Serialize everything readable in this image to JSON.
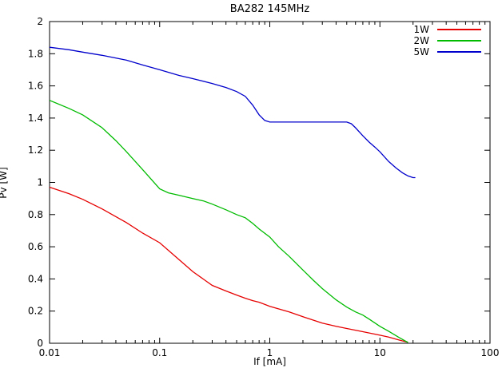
{
  "chart_data": {
    "type": "line",
    "title": "BA282 145MHz",
    "xlabel": "If [mA]",
    "ylabel": "Pv [W]",
    "x_scale": "log",
    "y_scale": "linear",
    "xlim": [
      0.01,
      100
    ],
    "ylim": [
      0,
      2
    ],
    "grid": false,
    "legend_position": "top-right-inside",
    "x_ticks": [
      {
        "value": 0.01,
        "label": "0.01"
      },
      {
        "value": 0.1,
        "label": "0.1"
      },
      {
        "value": 1,
        "label": "1"
      },
      {
        "value": 10,
        "label": "10"
      },
      {
        "value": 100,
        "label": "100"
      }
    ],
    "y_ticks": [
      {
        "value": 0,
        "label": "0"
      },
      {
        "value": 0.2,
        "label": "0.2"
      },
      {
        "value": 0.4,
        "label": "0.4"
      },
      {
        "value": 0.6,
        "label": "0.6"
      },
      {
        "value": 0.8,
        "label": "0.8"
      },
      {
        "value": 1,
        "label": "1"
      },
      {
        "value": 1.2,
        "label": "1.2"
      },
      {
        "value": 1.4,
        "label": "1.4"
      },
      {
        "value": 1.6,
        "label": "1.6"
      },
      {
        "value": 1.8,
        "label": "1.8"
      },
      {
        "value": 2,
        "label": "2"
      }
    ],
    "series": [
      {
        "name": "1W",
        "color": "#e60000",
        "points": [
          [
            0.01,
            0.97
          ],
          [
            0.015,
            0.93
          ],
          [
            0.02,
            0.895
          ],
          [
            0.03,
            0.835
          ],
          [
            0.05,
            0.75
          ],
          [
            0.07,
            0.685
          ],
          [
            0.1,
            0.625
          ],
          [
            0.15,
            0.52
          ],
          [
            0.2,
            0.445
          ],
          [
            0.3,
            0.36
          ],
          [
            0.4,
            0.325
          ],
          [
            0.5,
            0.3
          ],
          [
            0.6,
            0.28
          ],
          [
            0.7,
            0.265
          ],
          [
            0.8,
            0.255
          ],
          [
            1.0,
            0.23
          ],
          [
            1.5,
            0.195
          ],
          [
            2,
            0.165
          ],
          [
            3,
            0.125
          ],
          [
            4,
            0.105
          ],
          [
            5,
            0.092
          ],
          [
            7,
            0.072
          ],
          [
            10,
            0.05
          ],
          [
            12,
            0.038
          ],
          [
            15,
            0.02
          ],
          [
            18,
            0.006
          ]
        ]
      },
      {
        "name": "2W",
        "color": "#00bb00",
        "points": [
          [
            0.01,
            1.51
          ],
          [
            0.015,
            1.46
          ],
          [
            0.02,
            1.42
          ],
          [
            0.03,
            1.34
          ],
          [
            0.04,
            1.26
          ],
          [
            0.05,
            1.19
          ],
          [
            0.07,
            1.08
          ],
          [
            0.1,
            0.96
          ],
          [
            0.12,
            0.935
          ],
          [
            0.15,
            0.92
          ],
          [
            0.2,
            0.9
          ],
          [
            0.25,
            0.885
          ],
          [
            0.3,
            0.865
          ],
          [
            0.4,
            0.83
          ],
          [
            0.5,
            0.8
          ],
          [
            0.6,
            0.78
          ],
          [
            0.7,
            0.745
          ],
          [
            0.8,
            0.71
          ],
          [
            1.0,
            0.66
          ],
          [
            1.2,
            0.6
          ],
          [
            1.5,
            0.54
          ],
          [
            2.0,
            0.455
          ],
          [
            2.5,
            0.39
          ],
          [
            3,
            0.34
          ],
          [
            4,
            0.27
          ],
          [
            5,
            0.225
          ],
          [
            6,
            0.195
          ],
          [
            7,
            0.175
          ],
          [
            8,
            0.15
          ],
          [
            10,
            0.105
          ],
          [
            12,
            0.075
          ],
          [
            15,
            0.035
          ],
          [
            18,
            0.005
          ]
        ]
      },
      {
        "name": "5W",
        "color": "#0000cc",
        "points": [
          [
            0.01,
            1.84
          ],
          [
            0.015,
            1.825
          ],
          [
            0.02,
            1.81
          ],
          [
            0.03,
            1.79
          ],
          [
            0.05,
            1.76
          ],
          [
            0.07,
            1.73
          ],
          [
            0.1,
            1.7
          ],
          [
            0.15,
            1.665
          ],
          [
            0.2,
            1.645
          ],
          [
            0.3,
            1.615
          ],
          [
            0.4,
            1.59
          ],
          [
            0.5,
            1.565
          ],
          [
            0.6,
            1.535
          ],
          [
            0.7,
            1.48
          ],
          [
            0.8,
            1.42
          ],
          [
            0.9,
            1.385
          ],
          [
            1.0,
            1.375
          ],
          [
            2,
            1.375
          ],
          [
            3,
            1.375
          ],
          [
            4,
            1.375
          ],
          [
            5,
            1.375
          ],
          [
            5.5,
            1.365
          ],
          [
            6,
            1.34
          ],
          [
            7,
            1.29
          ],
          [
            8,
            1.25
          ],
          [
            9,
            1.22
          ],
          [
            10,
            1.19
          ],
          [
            12,
            1.13
          ],
          [
            14,
            1.09
          ],
          [
            16,
            1.06
          ],
          [
            18,
            1.04
          ],
          [
            20,
            1.03
          ],
          [
            21,
            1.03
          ]
        ]
      }
    ]
  }
}
